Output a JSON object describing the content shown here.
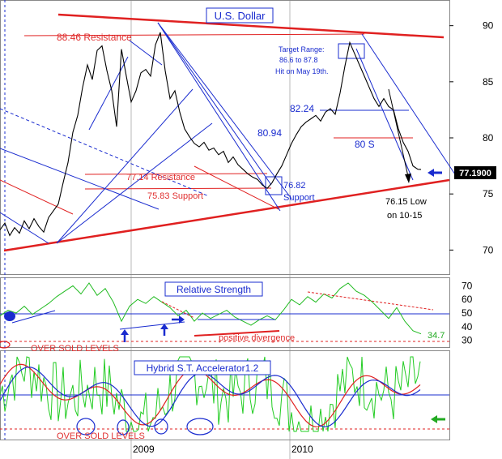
{
  "chart_data": [
    {
      "panel": "price",
      "type": "line",
      "title": "U.S. Dollar",
      "ylim": [
        68,
        92
      ],
      "yticks": [
        70,
        75,
        80,
        85,
        90
      ],
      "last_value_label": "77.1900",
      "last_value": 77.19,
      "series": [
        {
          "color": "#000000",
          "x": [
            0,
            6,
            12,
            18,
            24,
            30,
            36,
            42,
            48,
            54,
            60,
            66,
            72,
            78,
            84,
            90,
            96,
            102,
            108,
            114,
            120,
            126,
            132,
            138,
            144,
            150,
            156,
            162,
            168,
            174,
            180,
            186,
            192,
            198,
            204,
            210,
            216,
            222,
            228,
            234,
            240,
            246,
            252,
            258,
            264,
            270,
            276,
            282,
            288,
            294,
            300,
            306,
            312,
            318,
            324,
            330,
            336,
            342,
            348,
            354,
            360,
            366,
            372,
            378,
            384,
            390,
            396,
            402,
            408,
            414,
            420,
            426,
            432,
            438,
            444,
            450,
            456,
            462,
            468,
            474,
            480,
            486,
            492,
            498,
            504,
            510,
            516,
            520
          ],
          "values": [
            71.8,
            72.4,
            71.3,
            72.0,
            71.5,
            72.6,
            71.9,
            72.8,
            72.1,
            71.6,
            72.9,
            73.5,
            74.1,
            76.0,
            77.8,
            80.5,
            82.0,
            84.5,
            86.5,
            85.2,
            87.8,
            88.2,
            86.0,
            84.2,
            81.0,
            87.9,
            85.5,
            83.2,
            84.2,
            85.8,
            86.1,
            85.5,
            88.3,
            89.4,
            86.0,
            83.5,
            84.2,
            82.3,
            80.8,
            80.1,
            79.5,
            79.2,
            79.6,
            78.9,
            79.1,
            78.5,
            78.8,
            77.8,
            78.3,
            77.6,
            77.2,
            76.8,
            76.5,
            76.3,
            75.8,
            75.5,
            76.0,
            76.8,
            77.5,
            78.5,
            79.5,
            80.3,
            81.0,
            81.4,
            81.7,
            82.0,
            81.5,
            82.3,
            82.6,
            82.1,
            84.0,
            86.4,
            88.5,
            87.5,
            86.5,
            85.5,
            84.5,
            83.5,
            82.8,
            83.5,
            82.8,
            82.5,
            80.8,
            79.6,
            78.8,
            77.5,
            77.2,
            77.19
          ]
        }
      ],
      "annotations": [
        {
          "text": "88.46 Resistance",
          "color": "#e03030"
        },
        {
          "text": "77.14 Resistance",
          "color": "#e03030"
        },
        {
          "text": "75.83 Support",
          "color": "#e03030"
        },
        {
          "text": "80.94",
          "color": "#1a2ccf"
        },
        {
          "text": "76.82",
          "color": "#1a2ccf"
        },
        {
          "text": "Support",
          "color": "#1a2ccf"
        },
        {
          "text": "82.24",
          "color": "#1a2ccf"
        },
        {
          "text": "80 S",
          "color": "#1a2ccf"
        },
        {
          "text": "Target Range:",
          "color": "#1a2ccf"
        },
        {
          "text": "86.6 to 87.8",
          "color": "#1a2ccf"
        },
        {
          "text": "Hit on May 19th.",
          "color": "#1a2ccf"
        },
        {
          "text": "76.15 Low",
          "color": "#000000"
        },
        {
          "text": "on 10-15",
          "color": "#000000"
        }
      ]
    },
    {
      "panel": "rsi",
      "type": "line",
      "title": "Relative Strength",
      "ylim": [
        25,
        75
      ],
      "yticks": [
        30,
        40,
        50,
        60,
        70
      ],
      "last_value_label": "34.7",
      "series": [
        {
          "color": "#22bb22",
          "x": [
            0,
            10,
            20,
            30,
            40,
            50,
            60,
            70,
            80,
            90,
            100,
            110,
            120,
            130,
            140,
            150,
            160,
            170,
            180,
            190,
            200,
            210,
            220,
            230,
            240,
            250,
            260,
            270,
            280,
            290,
            300,
            310,
            320,
            330,
            340,
            350,
            360,
            370,
            380,
            390,
            400,
            410,
            420,
            430,
            440,
            450,
            460,
            470,
            480,
            490,
            500,
            510,
            520
          ],
          "values": [
            48,
            52,
            50,
            55,
            49,
            53,
            57,
            62,
            66,
            70,
            64,
            72,
            63,
            68,
            58,
            44,
            55,
            60,
            57,
            62,
            58,
            54,
            48,
            52,
            44,
            50,
            46,
            49,
            52,
            47,
            44,
            41,
            45,
            48,
            45,
            52,
            60,
            56,
            62,
            58,
            64,
            61,
            68,
            72,
            66,
            63,
            58,
            52,
            46,
            54,
            44,
            37,
            34.7
          ]
        }
      ],
      "annotations": [
        {
          "text": "positive divergence",
          "color": "#e03030"
        },
        {
          "text": "OVER SOLD LEVELS",
          "color": "#e03030"
        }
      ]
    },
    {
      "panel": "oscillator",
      "type": "line",
      "title": "Hybrid S.T. Accelerator1.2",
      "annotations": [
        {
          "text": "OVER SOLD LEVELS",
          "color": "#e03030"
        }
      ]
    }
  ],
  "x_axis": {
    "labels": [
      "2009",
      "2010"
    ]
  }
}
